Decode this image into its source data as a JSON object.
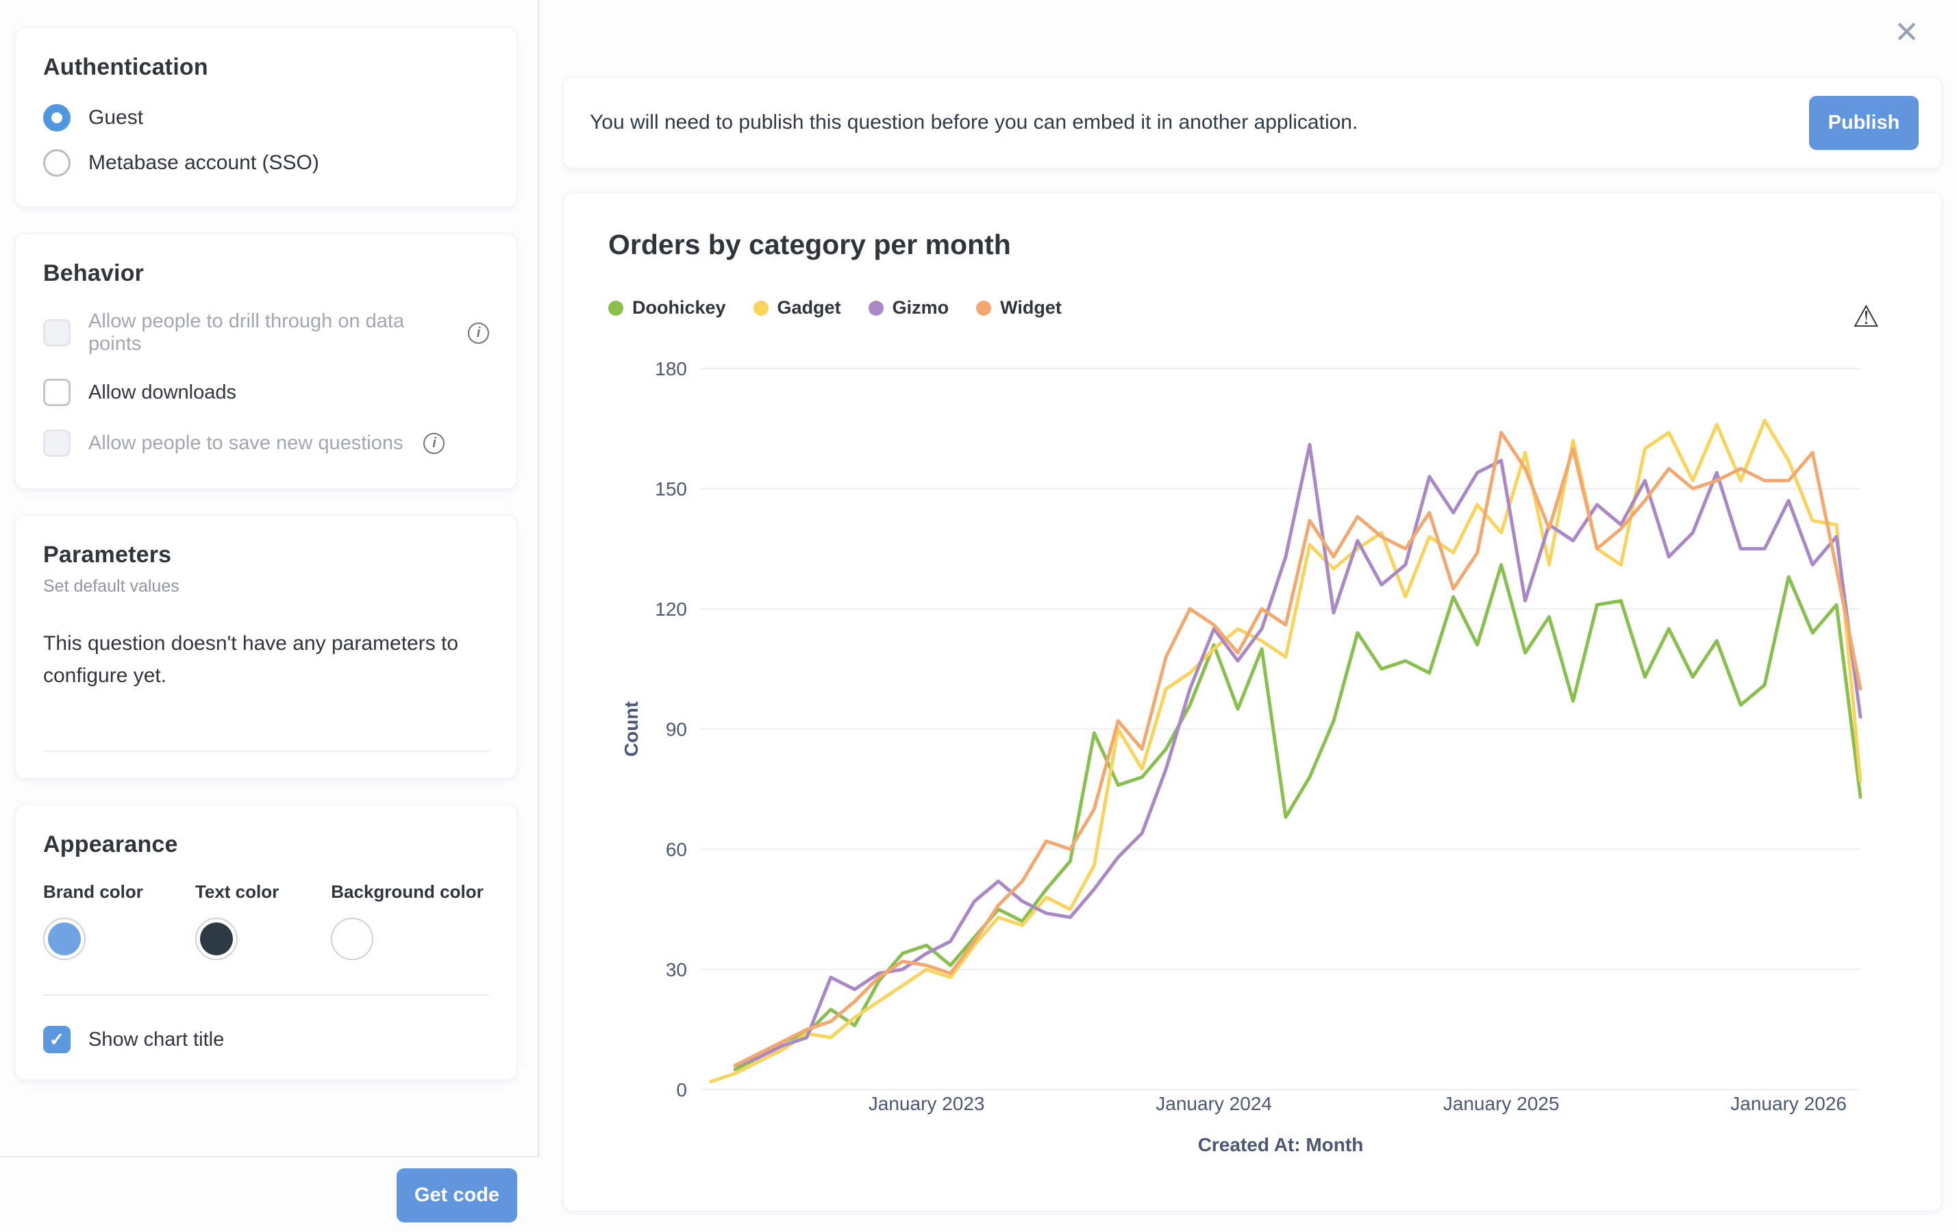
{
  "sidebar": {
    "authentication": {
      "title": "Authentication",
      "options": [
        {
          "label": "Guest",
          "selected": true
        },
        {
          "label": "Metabase account (SSO)",
          "selected": false
        }
      ]
    },
    "behavior": {
      "title": "Behavior",
      "checkboxes": [
        {
          "label": "Allow people to drill through on data points",
          "checked": false,
          "disabled": true,
          "has_info": true
        },
        {
          "label": "Allow downloads",
          "checked": false,
          "disabled": false,
          "has_info": false
        },
        {
          "label": "Allow people to save new questions",
          "checked": false,
          "disabled": true,
          "has_info": true
        }
      ]
    },
    "parameters": {
      "title": "Parameters",
      "subtitle": "Set default values",
      "empty_text": "This question doesn't have any parameters to configure yet."
    },
    "appearance": {
      "title": "Appearance",
      "swatches": [
        {
          "label": "Brand color",
          "color": "#6fa3e2"
        },
        {
          "label": "Text color",
          "color": "#2e3a43"
        },
        {
          "label": "Background color",
          "color": "#ffffff"
        }
      ],
      "show_chart_title": {
        "label": "Show chart title",
        "checked": true
      }
    },
    "footer": {
      "get_code_label": "Get code"
    }
  },
  "main": {
    "icons": {
      "close": "✕",
      "warning": "⚠",
      "check": "✓",
      "info": "i"
    },
    "banner": {
      "message": "You will need to publish this question before you can embed it in another application.",
      "publish_label": "Publish"
    },
    "chart_card_title": "Orders by category per month"
  },
  "chart_data": {
    "type": "line",
    "title": "Orders by category per month",
    "xlabel": "Created At: Month",
    "ylabel": "Count",
    "ylim": [
      0,
      180
    ],
    "yticks": [
      0,
      30,
      60,
      90,
      120,
      150,
      180
    ],
    "grid": true,
    "legend_position": "top-left",
    "x": [
      "2022-04",
      "2022-05",
      "2022-06",
      "2022-07",
      "2022-08",
      "2022-09",
      "2022-10",
      "2022-11",
      "2022-12",
      "2023-01",
      "2023-02",
      "2023-03",
      "2023-04",
      "2023-05",
      "2023-06",
      "2023-07",
      "2023-08",
      "2023-09",
      "2023-10",
      "2023-11",
      "2023-12",
      "2024-01",
      "2024-02",
      "2024-03",
      "2024-04",
      "2024-05",
      "2024-06",
      "2024-07",
      "2024-08",
      "2024-09",
      "2024-10",
      "2024-11",
      "2024-12",
      "2025-01",
      "2025-02",
      "2025-03",
      "2025-04",
      "2025-05",
      "2025-06",
      "2025-07",
      "2025-08",
      "2025-09",
      "2025-10",
      "2025-11",
      "2025-12",
      "2026-01",
      "2026-02",
      "2026-03",
      "2026-04"
    ],
    "x_ticks": [
      {
        "index": 9,
        "label": "January 2023"
      },
      {
        "index": 21,
        "label": "January 2024"
      },
      {
        "index": 33,
        "label": "January 2025"
      },
      {
        "index": 45,
        "label": "January 2026"
      }
    ],
    "series": [
      {
        "name": "Doohickey",
        "color": "#88bf4d",
        "values": [
          null,
          5,
          8,
          12,
          14,
          20,
          16,
          27,
          34,
          36,
          31,
          38,
          45,
          42,
          50,
          57,
          89,
          76,
          78,
          85,
          96,
          111,
          95,
          110,
          68,
          78,
          92,
          114,
          105,
          107,
          104,
          123,
          111,
          131,
          109,
          118,
          97,
          121,
          122,
          103,
          115,
          103,
          112,
          96,
          101,
          128,
          114,
          121,
          73
        ]
      },
      {
        "name": "Gadget",
        "color": "#f9d45c",
        "values": [
          2,
          4,
          7,
          10,
          14,
          13,
          18,
          22,
          26,
          30,
          28,
          36,
          43,
          41,
          48,
          45,
          56,
          90,
          80,
          100,
          104,
          110,
          115,
          112,
          108,
          136,
          130,
          135,
          139,
          123,
          138,
          134,
          146,
          139,
          159,
          131,
          162,
          135,
          131,
          160,
          164,
          152,
          166,
          152,
          167,
          157,
          142,
          141,
          77
        ]
      },
      {
        "name": "Gizmo",
        "color": "#a989c5",
        "values": [
          null,
          6,
          8,
          11,
          13,
          28,
          25,
          29,
          30,
          34,
          37,
          47,
          52,
          47,
          44,
          43,
          50,
          58,
          64,
          80,
          100,
          115,
          107,
          115,
          133,
          161,
          119,
          137,
          126,
          131,
          153,
          144,
          154,
          157,
          122,
          141,
          137,
          146,
          141,
          152,
          133,
          139,
          154,
          135,
          135,
          147,
          131,
          138,
          93
        ]
      },
      {
        "name": "Widget",
        "color": "#f2a86f",
        "values": [
          null,
          6,
          9,
          12,
          15,
          17,
          22,
          28,
          32,
          31,
          29,
          37,
          46,
          52,
          62,
          60,
          70,
          92,
          85,
          108,
          120,
          116,
          109,
          120,
          116,
          142,
          133,
          143,
          138,
          135,
          144,
          125,
          134,
          164,
          155,
          140,
          160,
          135,
          140,
          147,
          155,
          150,
          152,
          155,
          152,
          152,
          159,
          130,
          100
        ]
      }
    ]
  }
}
